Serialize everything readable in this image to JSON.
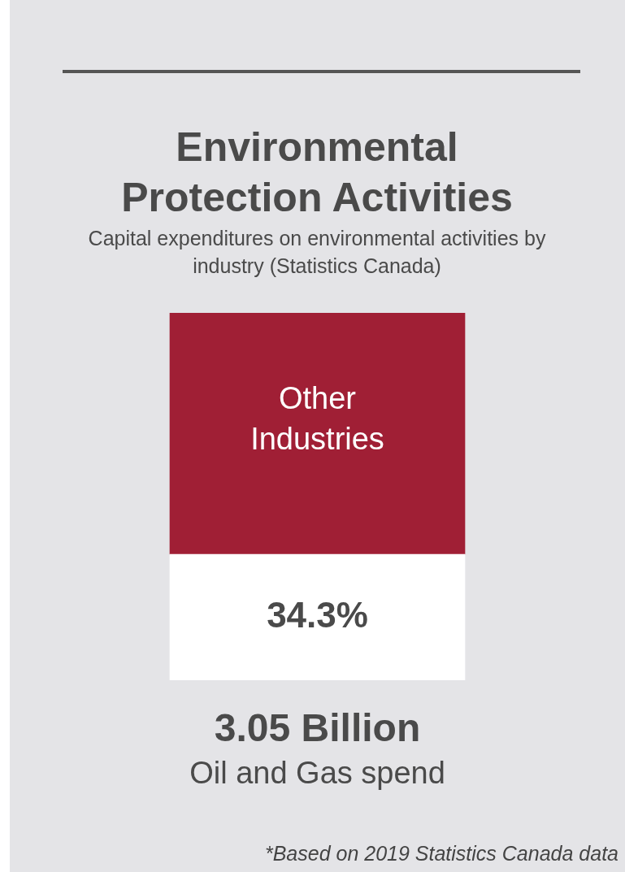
{
  "chart_data": {
    "type": "bar",
    "title": "Environmental Protection Activities",
    "subtitle": "Capital expenditures on environmental activities by industry (Statistics Canada)",
    "stacked": true,
    "ylim": [
      0,
      100
    ],
    "tick_labels": false,
    "categories": [
      null
    ],
    "series": [
      {
        "color": "#ffffff",
        "values": [
          34.3
        ],
        "value_labels": [
          "34.3%"
        ]
      },
      {
        "name": "Other Industries",
        "color": "#a01f35",
        "values": [
          65.7
        ]
      }
    ],
    "annotations": [
      "3.05 Billion",
      "Oil and Gas spend",
      "*Based on 2019 Statistics Canada data"
    ]
  }
}
